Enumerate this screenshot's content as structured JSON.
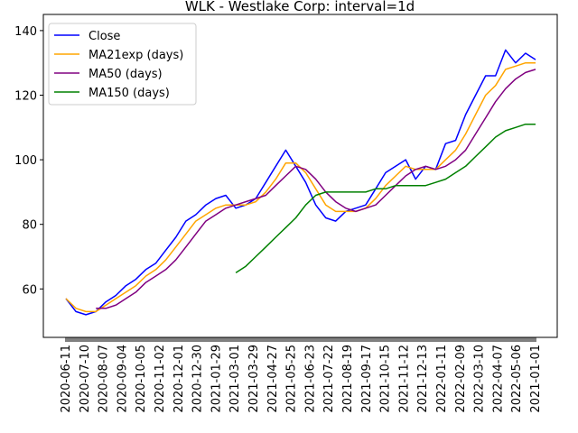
{
  "chart_data": {
    "type": "line",
    "title": "WLK - Westlake Corp: interval=1d",
    "xlabel": "",
    "ylabel": "",
    "x_ticks": [
      "2020-06-11",
      "2020-07-10",
      "2020-08-07",
      "2020-09-04",
      "2020-10-05",
      "2020-11-02",
      "2020-12-01",
      "2020-12-30",
      "2021-01-29",
      "2021-03-01",
      "2021-03-29",
      "2021-04-27",
      "2021-05-25",
      "2021-06-23",
      "2021-07-22",
      "2021-08-19",
      "2021-09-17",
      "2021-10-15",
      "2021-11-12",
      "2021-12-13",
      "2022-01-11",
      "2022-02-09",
      "2022-03-10",
      "2022-04-07",
      "2022-05-06",
      "2021-01-01"
    ],
    "y_ticks": [
      60,
      80,
      100,
      120,
      140
    ],
    "ylim": [
      45,
      145
    ],
    "grid": false,
    "legend_position": "top-left",
    "series": [
      {
        "name": "Close",
        "color": "#0000ff",
        "points": [
          [
            0,
            57
          ],
          [
            1,
            53
          ],
          [
            2,
            52
          ],
          [
            3,
            53
          ],
          [
            4,
            56
          ],
          [
            5,
            58
          ],
          [
            6,
            61
          ],
          [
            7,
            63
          ],
          [
            8,
            66
          ],
          [
            9,
            68
          ],
          [
            10,
            72
          ],
          [
            11,
            76
          ],
          [
            12,
            81
          ],
          [
            13,
            83
          ],
          [
            14,
            86
          ],
          [
            15,
            88
          ],
          [
            16,
            89
          ],
          [
            17,
            85
          ],
          [
            18,
            86
          ],
          [
            19,
            88
          ],
          [
            20,
            93
          ],
          [
            21,
            98
          ],
          [
            22,
            103
          ],
          [
            23,
            98
          ],
          [
            24,
            93
          ],
          [
            25,
            86
          ],
          [
            26,
            82
          ],
          [
            27,
            81
          ],
          [
            28,
            84
          ],
          [
            29,
            85
          ],
          [
            30,
            86
          ],
          [
            31,
            91
          ],
          [
            32,
            96
          ],
          [
            33,
            98
          ],
          [
            34,
            100
          ],
          [
            35,
            94
          ],
          [
            36,
            98
          ],
          [
            37,
            97
          ],
          [
            38,
            105
          ],
          [
            39,
            106
          ],
          [
            40,
            114
          ],
          [
            41,
            120
          ],
          [
            42,
            126
          ],
          [
            43,
            126
          ],
          [
            44,
            134
          ],
          [
            45,
            130
          ],
          [
            46,
            133
          ],
          [
            47,
            131
          ]
        ]
      },
      {
        "name": "MA21exp (days)",
        "color": "#ffa500",
        "points": [
          [
            0,
            57
          ],
          [
            1,
            54
          ],
          [
            2,
            53
          ],
          [
            3,
            53
          ],
          [
            4,
            55
          ],
          [
            5,
            57
          ],
          [
            6,
            59
          ],
          [
            7,
            61
          ],
          [
            8,
            64
          ],
          [
            9,
            66
          ],
          [
            10,
            69
          ],
          [
            11,
            73
          ],
          [
            12,
            77
          ],
          [
            13,
            81
          ],
          [
            14,
            83
          ],
          [
            15,
            85
          ],
          [
            16,
            86
          ],
          [
            17,
            86
          ],
          [
            18,
            86
          ],
          [
            19,
            87
          ],
          [
            20,
            90
          ],
          [
            21,
            94
          ],
          [
            22,
            99
          ],
          [
            23,
            99
          ],
          [
            24,
            96
          ],
          [
            25,
            91
          ],
          [
            26,
            86
          ],
          [
            27,
            84
          ],
          [
            28,
            84
          ],
          [
            29,
            84
          ],
          [
            30,
            85
          ],
          [
            31,
            88
          ],
          [
            32,
            92
          ],
          [
            33,
            95
          ],
          [
            34,
            98
          ],
          [
            35,
            97
          ],
          [
            36,
            97
          ],
          [
            37,
            97
          ],
          [
            38,
            100
          ],
          [
            39,
            103
          ],
          [
            40,
            108
          ],
          [
            41,
            114
          ],
          [
            42,
            120
          ],
          [
            43,
            123
          ],
          [
            44,
            128
          ],
          [
            45,
            129
          ],
          [
            46,
            130
          ],
          [
            47,
            130
          ]
        ]
      },
      {
        "name": "MA50 (days)",
        "color": "#800080",
        "points": [
          [
            3,
            54
          ],
          [
            4,
            54
          ],
          [
            5,
            55
          ],
          [
            6,
            57
          ],
          [
            7,
            59
          ],
          [
            8,
            62
          ],
          [
            9,
            64
          ],
          [
            10,
            66
          ],
          [
            11,
            69
          ],
          [
            12,
            73
          ],
          [
            13,
            77
          ],
          [
            14,
            81
          ],
          [
            15,
            83
          ],
          [
            16,
            85
          ],
          [
            17,
            86
          ],
          [
            18,
            87
          ],
          [
            19,
            88
          ],
          [
            20,
            89
          ],
          [
            21,
            92
          ],
          [
            22,
            95
          ],
          [
            23,
            98
          ],
          [
            24,
            97
          ],
          [
            25,
            94
          ],
          [
            26,
            90
          ],
          [
            27,
            87
          ],
          [
            28,
            85
          ],
          [
            29,
            84
          ],
          [
            30,
            85
          ],
          [
            31,
            86
          ],
          [
            32,
            89
          ],
          [
            33,
            92
          ],
          [
            34,
            95
          ],
          [
            35,
            97
          ],
          [
            36,
            98
          ],
          [
            37,
            97
          ],
          [
            38,
            98
          ],
          [
            39,
            100
          ],
          [
            40,
            103
          ],
          [
            41,
            108
          ],
          [
            42,
            113
          ],
          [
            43,
            118
          ],
          [
            44,
            122
          ],
          [
            45,
            125
          ],
          [
            46,
            127
          ],
          [
            47,
            128
          ]
        ]
      },
      {
        "name": "MA150 (days)",
        "color": "#008000",
        "points": [
          [
            17,
            65
          ],
          [
            18,
            67
          ],
          [
            19,
            70
          ],
          [
            20,
            73
          ],
          [
            21,
            76
          ],
          [
            22,
            79
          ],
          [
            23,
            82
          ],
          [
            24,
            86
          ],
          [
            25,
            89
          ],
          [
            26,
            90
          ],
          [
            27,
            90
          ],
          [
            28,
            90
          ],
          [
            29,
            90
          ],
          [
            30,
            90
          ],
          [
            31,
            91
          ],
          [
            32,
            91
          ],
          [
            33,
            92
          ],
          [
            34,
            92
          ],
          [
            35,
            92
          ],
          [
            36,
            92
          ],
          [
            37,
            93
          ],
          [
            38,
            94
          ],
          [
            39,
            96
          ],
          [
            40,
            98
          ],
          [
            41,
            101
          ],
          [
            42,
            104
          ],
          [
            43,
            107
          ],
          [
            44,
            109
          ],
          [
            45,
            110
          ],
          [
            46,
            111
          ],
          [
            47,
            111
          ]
        ]
      }
    ]
  }
}
